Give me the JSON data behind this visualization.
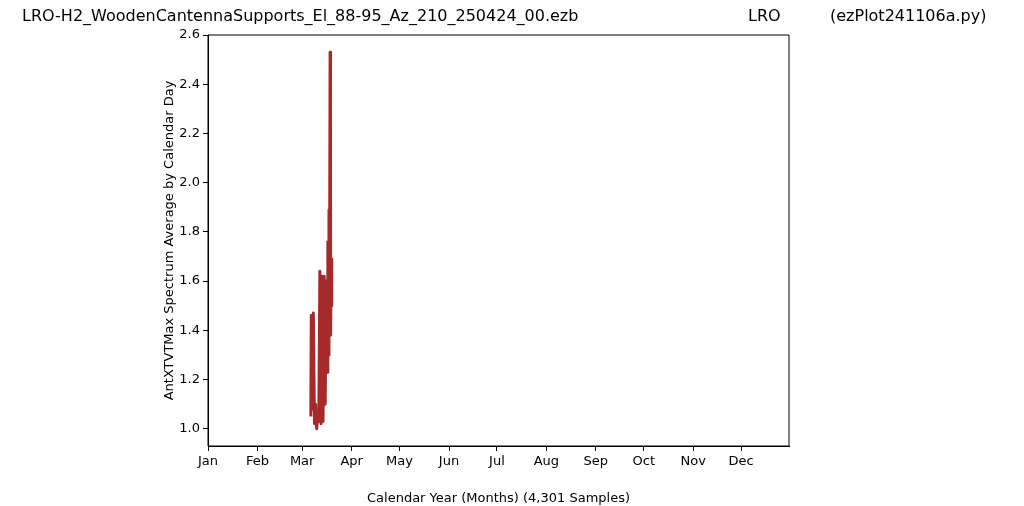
{
  "chart_data": {
    "type": "line",
    "title": "LRO-H2_WoodenCantennaSupports_El_88-95_Az_210_250424_00.ezb",
    "annotations": [
      "LRO",
      "(ezPlot241106a.py)"
    ],
    "xlabel": "Calendar Year (Months) (4,301 Samples)",
    "ylabel": "AntXTVTMax Spectrum Average by Calendar Day",
    "xlim": [
      "--01-01",
      "--12-31"
    ],
    "xticks": [
      {
        "value": "--01-01",
        "label": "Jan"
      },
      {
        "value": "--02-01",
        "label": "Feb"
      },
      {
        "value": "--03-01",
        "label": "Mar"
      },
      {
        "value": "--04-01",
        "label": "Apr"
      },
      {
        "value": "--05-01",
        "label": "May"
      },
      {
        "value": "--06-01",
        "label": "Jun"
      },
      {
        "value": "--07-01",
        "label": "Jul"
      },
      {
        "value": "--08-01",
        "label": "Aug"
      },
      {
        "value": "--09-01",
        "label": "Sep"
      },
      {
        "value": "--10-01",
        "label": "Oct"
      },
      {
        "value": "--11-01",
        "label": "Nov"
      },
      {
        "value": "--12-01",
        "label": "Dec"
      }
    ],
    "ylim": [
      0.93,
      2.6
    ],
    "yticks": [
      {
        "value": 1,
        "label": "1.0"
      },
      1.2,
      1.4,
      1.6,
      1.8,
      {
        "value": 2,
        "label": "2.0"
      },
      2.2,
      2.4,
      2.6
    ],
    "marker": "none",
    "line_style": "solid",
    "series": [
      {
        "color": "#a52a2a",
        "x": [
          "--03-06T10:00",
          "--03-06T17:00",
          "--03-07T10:00",
          "--03-08T00:00",
          "--03-08T17:00",
          "--03-09T10:00",
          "--03-10T02:00",
          "--03-10T17:00",
          "--03-11T10:00",
          "--03-12T02:00",
          "--03-12T19:00",
          "--03-13T10:00",
          "--03-14T02:00",
          "--03-14T19:00",
          "--03-15T10:00",
          "--03-16T02:00",
          "--03-16T19:00",
          "--03-17T02:00",
          "--03-17T12:00",
          "--03-17T19:00",
          "--03-18T02:00",
          "--03-18T12:00",
          "--03-18T19:00",
          "--03-19T05:00",
          "--03-19T12:00"
        ],
        "values": [
          1.05,
          1.46,
          1.08,
          1.47,
          1.02,
          1.1,
          1.0,
          1.05,
          1.03,
          1.64,
          1.02,
          1.62,
          1.03,
          1.62,
          1.1,
          1.6,
          1.23,
          1.76,
          1.3,
          1.89,
          1.4,
          2.53,
          1.38,
          1.69,
          1.5
        ]
      }
    ]
  }
}
